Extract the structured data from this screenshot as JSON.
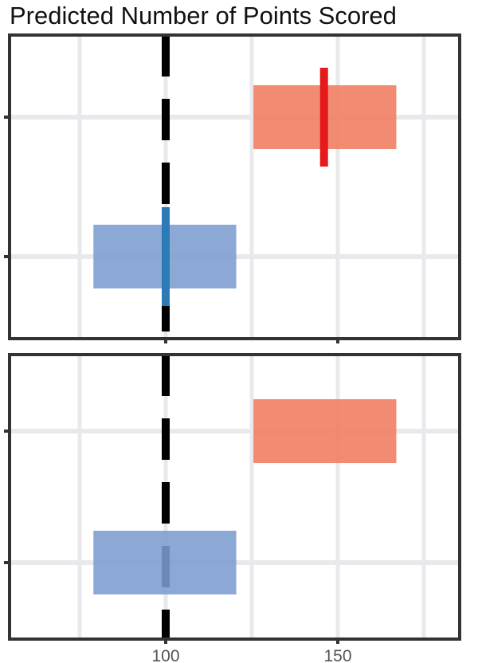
{
  "chart_data": {
    "type": "bar",
    "title": "Predicted Number of Points Scored",
    "xlabel": "",
    "ylabel": "",
    "xlim": [
      55,
      185
    ],
    "x_ticks": [
      100,
      150
    ],
    "x_gridlines": [
      75,
      100,
      125,
      150,
      175
    ],
    "grid": true,
    "legend": "none",
    "reference_line": {
      "x": 100,
      "style": "dashed",
      "color": "#000000"
    },
    "panels": [
      {
        "rows": [
          {
            "range": [
              125.5,
              167
            ],
            "color": "#ef7b5e",
            "marker": 146,
            "marker_color": "#e41a1c"
          },
          {
            "range": [
              79,
              120.5
            ],
            "color": "#7c9ccf",
            "marker": 100,
            "marker_color": "#2c7bb6"
          }
        ]
      },
      {
        "rows": [
          {
            "range": [
              125.5,
              167
            ],
            "color": "#ef7b5e"
          },
          {
            "range": [
              79,
              120.5
            ],
            "color": "#7c9ccf"
          }
        ]
      }
    ]
  }
}
